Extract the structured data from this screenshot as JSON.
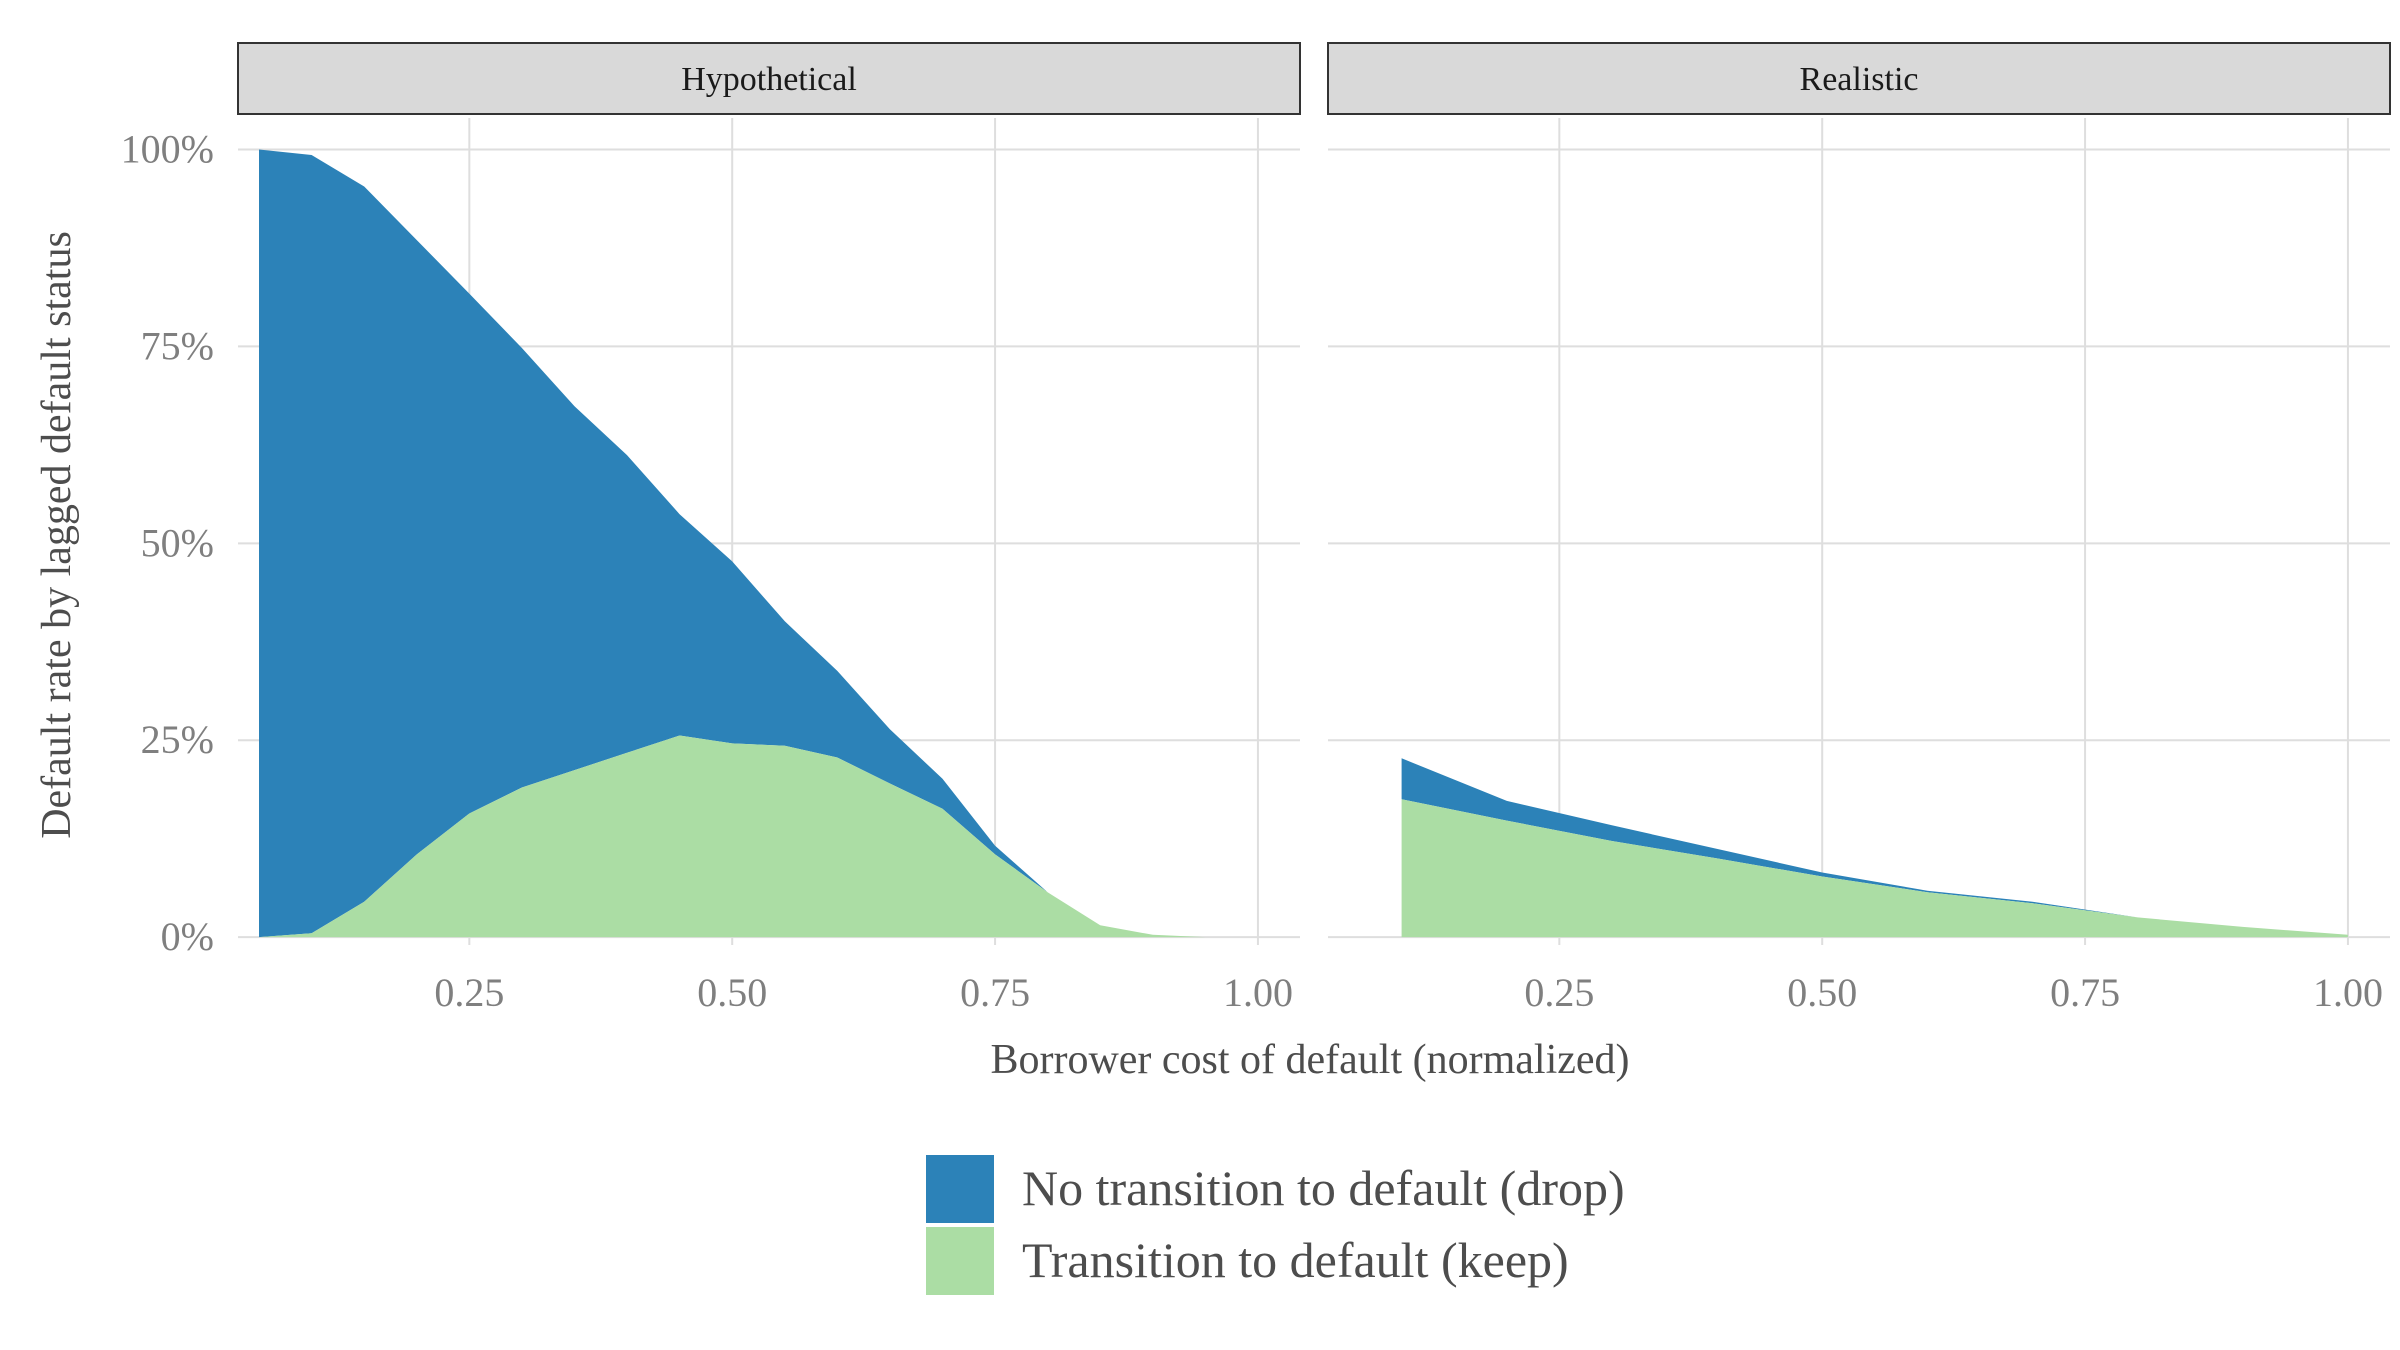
{
  "chart_data": {
    "type": "area",
    "stacked": true,
    "x_label": "Borrower cost of default (normalized)",
    "y_label": "Default rate by lagged default status",
    "x_ticks": [
      "0.25",
      "0.50",
      "0.75",
      "1.00"
    ],
    "x_tick_values": [
      0.25,
      0.5,
      0.75,
      1.0
    ],
    "y_ticks": [
      "0%",
      "25%",
      "50%",
      "75%",
      "100%"
    ],
    "y_tick_values": [
      0,
      0.25,
      0.5,
      0.75,
      1.0
    ],
    "xlim": [
      0.03,
      1.04
    ],
    "ylim": [
      -0.01,
      1.04
    ],
    "grid": true,
    "legend_position": "bottom",
    "series_meta": [
      {
        "name": "No transition to default (drop)",
        "color": "#2c82b8"
      },
      {
        "name": "Transition to default (keep)",
        "color": "#abdda4"
      }
    ],
    "panels": [
      {
        "title": "Hypothetical",
        "x": [
          0.05,
          0.1,
          0.15,
          0.2,
          0.25,
          0.3,
          0.35,
          0.4,
          0.45,
          0.5,
          0.55,
          0.6,
          0.65,
          0.7,
          0.75,
          0.8,
          0.85,
          0.9,
          0.95,
          1.0
        ],
        "keep": [
          0.0,
          0.005,
          0.045,
          0.105,
          0.157,
          0.19,
          0.212,
          0.234,
          0.256,
          0.246,
          0.243,
          0.228,
          0.195,
          0.163,
          0.105,
          0.057,
          0.015,
          0.003,
          0.0,
          0.0
        ],
        "drop": [
          1.0,
          0.988,
          0.908,
          0.78,
          0.66,
          0.558,
          0.462,
          0.378,
          0.281,
          0.231,
          0.158,
          0.11,
          0.069,
          0.038,
          0.011,
          0.0,
          0.0,
          0.0,
          0.0,
          0.0
        ]
      },
      {
        "title": "Realistic",
        "x": [
          0.1,
          0.2,
          0.3,
          0.4,
          0.5,
          0.6,
          0.7,
          0.8,
          0.9,
          1.0
        ],
        "keep": [
          0.175,
          0.148,
          0.122,
          0.1,
          0.077,
          0.057,
          0.043,
          0.025,
          0.013,
          0.003
        ],
        "drop": [
          0.052,
          0.025,
          0.02,
          0.012,
          0.005,
          0.002,
          0.002,
          0.0,
          0.0,
          0.0
        ]
      }
    ]
  }
}
